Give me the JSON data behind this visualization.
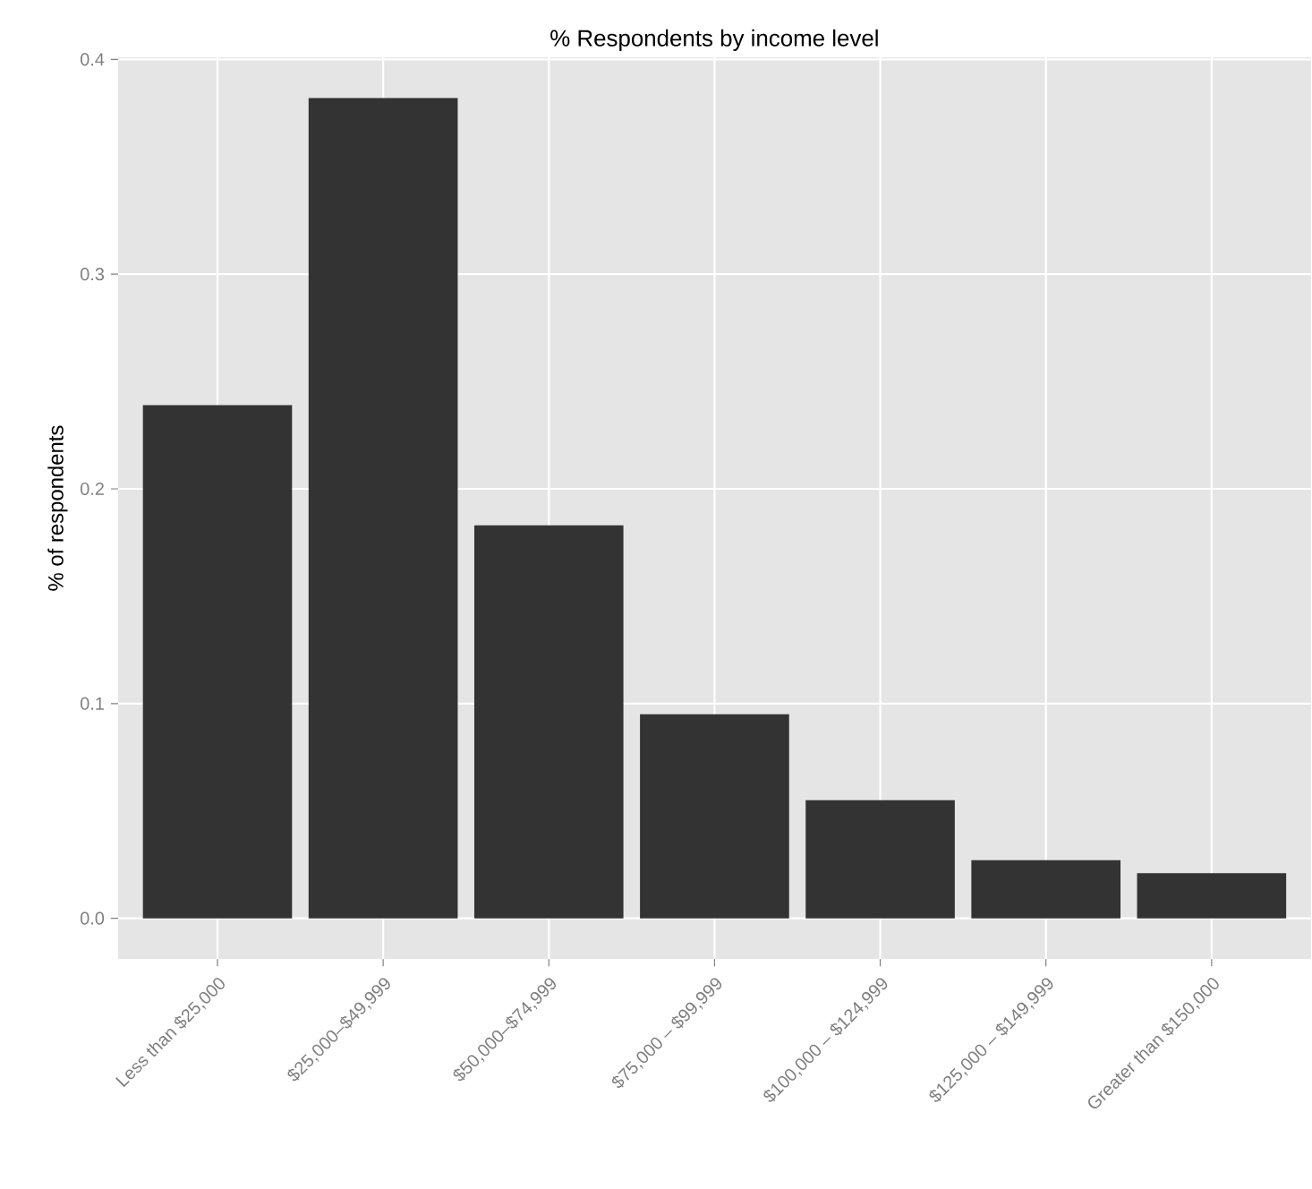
{
  "chart_data": {
    "type": "bar",
    "title": "% Respondents by income level",
    "ylabel": "% of respondents",
    "categories": [
      "Less than $25,000",
      "$25,000–$49,999",
      "$50,000–$74,999",
      "$75,000 – $99,999",
      "$100,000 – $124,999",
      "$125,000 – $149,999",
      "Greater than $150,000"
    ],
    "values": [
      0.239,
      0.382,
      0.183,
      0.095,
      0.055,
      0.027,
      0.021
    ],
    "color": "#333333",
    "ylim": [
      -0.019,
      0.401
    ],
    "yticks": [
      {
        "value": 0.0,
        "label": "0.0"
      },
      {
        "value": 0.1,
        "label": "0.1"
      },
      {
        "value": 0.2,
        "label": "0.2"
      },
      {
        "value": 0.3,
        "label": "0.3"
      },
      {
        "value": 0.4,
        "label": "0.4"
      }
    ],
    "grid": true
  }
}
